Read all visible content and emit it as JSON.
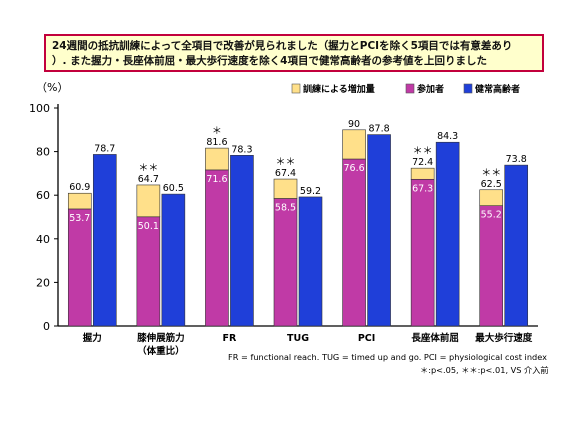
{
  "banner": {
    "line1": "24週間の抵抗訓練によって全項目で改善が見られました（握力とPCIを除く5項目では有意差あり",
    "line2": "）. また握力・長座体前屈・最大歩行速度を除く4項目で健常高齢者の参考値を上回りました"
  },
  "colors": {
    "increase": "#ffe08a",
    "participant": "#c03aa6",
    "healthy": "#1f3fd9",
    "banner_border": "#c2003c",
    "banner_fill": "#ffffcc"
  },
  "chart_data": {
    "type": "bar",
    "ylabel": "（%）",
    "ylim": [
      0,
      100
    ],
    "yticks": [
      0,
      20,
      40,
      60,
      80,
      100
    ],
    "grid": false,
    "legend_position": "top-right",
    "legend": [
      {
        "key": "increase",
        "label": "訓練による増加量"
      },
      {
        "key": "participant",
        "label": "参加者"
      },
      {
        "key": "healthy",
        "label": "健常高齢者"
      }
    ],
    "categories": [
      {
        "label": "握力",
        "label2": ""
      },
      {
        "label": "膝伸展筋力",
        "label2": "（体重比）"
      },
      {
        "label": "FR",
        "label2": ""
      },
      {
        "label": "TUG",
        "label2": ""
      },
      {
        "label": "PCI",
        "label2": ""
      },
      {
        "label": "長座体前屈",
        "label2": ""
      },
      {
        "label": "最大歩行速度",
        "label2": ""
      }
    ],
    "series": [
      {
        "name": "参加者",
        "key": "participant",
        "values": [
          53.7,
          50.1,
          71.6,
          58.5,
          76.6,
          67.3,
          55.2
        ]
      },
      {
        "name": "訓練による増加量",
        "key": "increase",
        "totals": [
          60.9,
          64.7,
          81.6,
          67.4,
          90,
          72.4,
          62.5
        ]
      },
      {
        "name": "健常高齢者",
        "key": "healthy",
        "values": [
          78.7,
          60.5,
          78.3,
          59.2,
          87.8,
          84.3,
          73.8
        ]
      }
    ],
    "significance": [
      "",
      "＊＊",
      "＊",
      "＊＊",
      "",
      "＊＊",
      "＊＊"
    ]
  },
  "footnotes": {
    "line1": "FR = functional reach.  TUG = timed up and go.  PCI = physiological cost index",
    "line2": "＊:p<.05, ＊＊:p<.01, VS 介入前"
  }
}
